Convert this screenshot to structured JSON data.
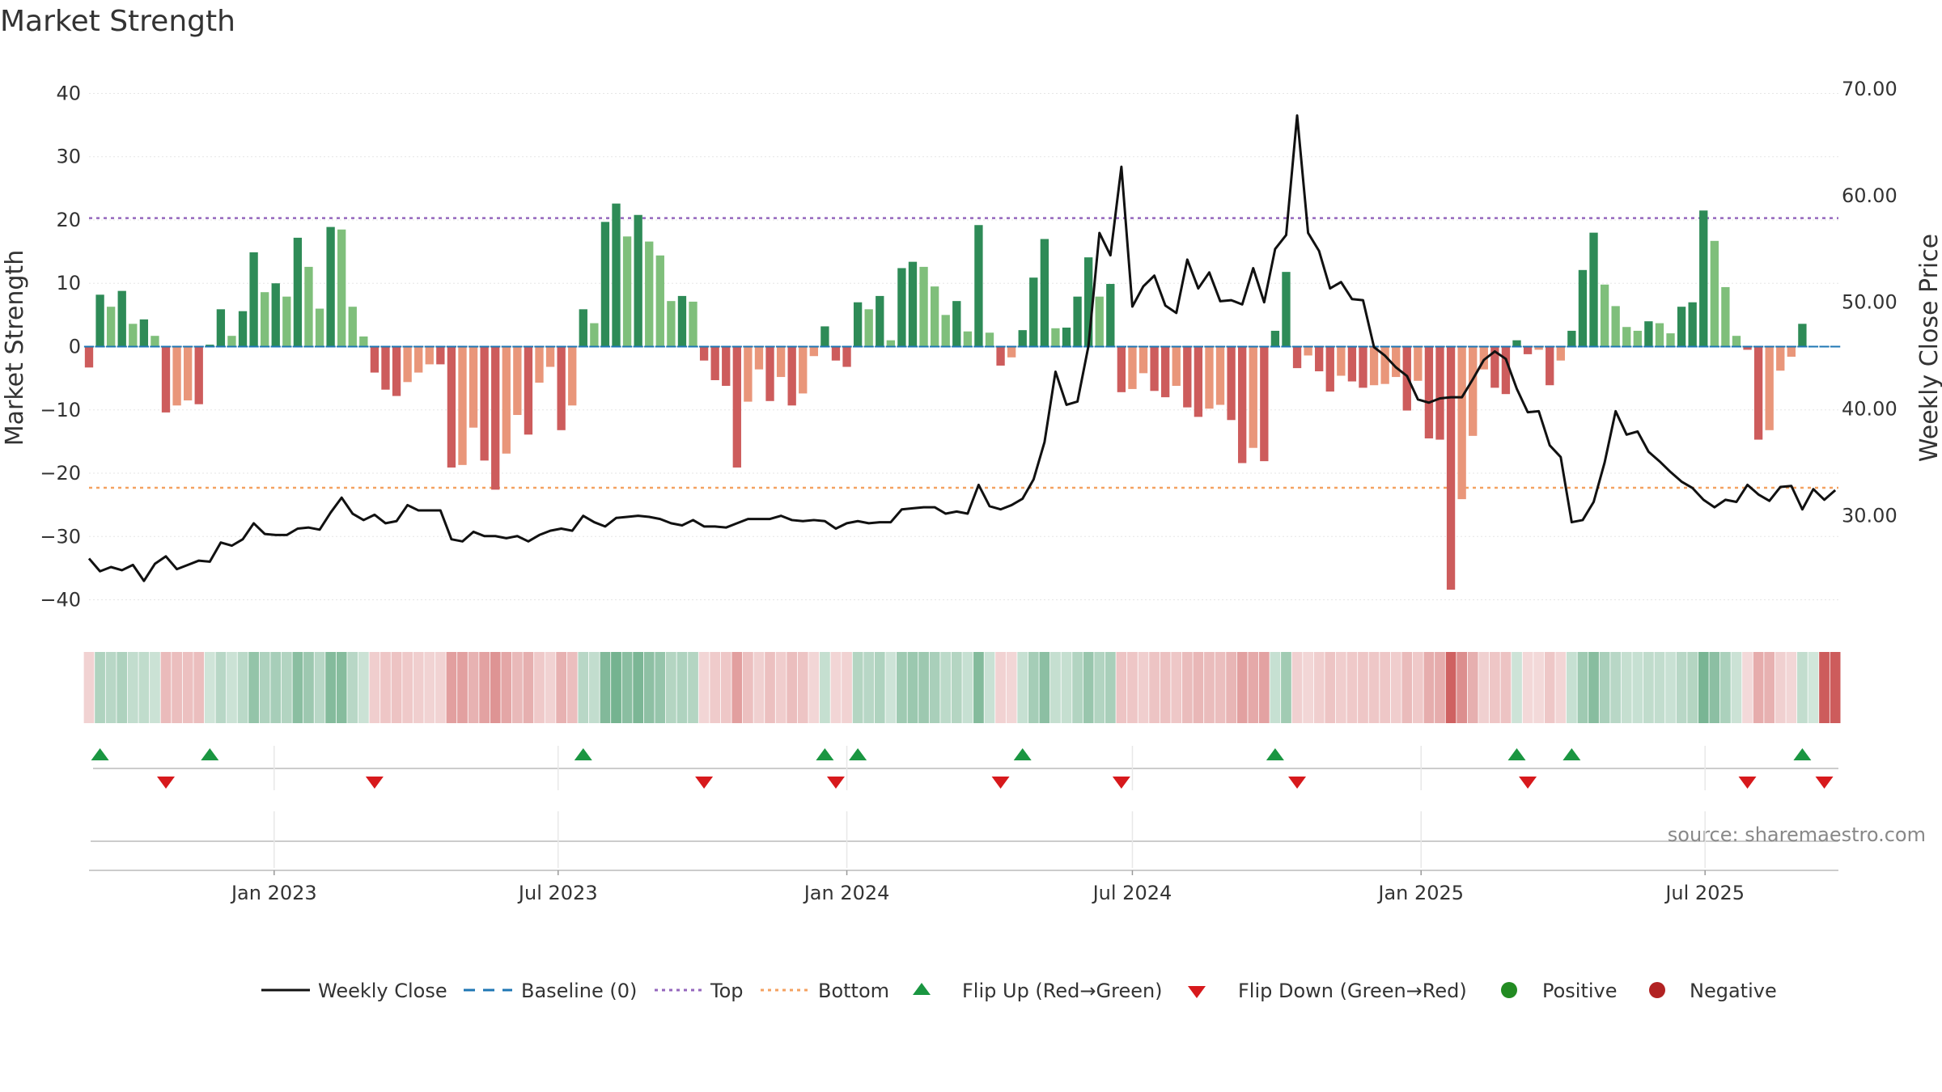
{
  "chart_data": {
    "type": "bar",
    "title": "Market Strength",
    "ylabel": "Market Strength",
    "y2label": "Weekly Close Price",
    "ylim": [
      -43,
      43
    ],
    "y2lim": [
      20.35,
      71.35
    ],
    "yticks": [
      40,
      30,
      20,
      10,
      0,
      -10,
      -20,
      -30,
      -40
    ],
    "y2ticks": [
      "70.00",
      "60.00",
      "50.00",
      "40.00",
      "30.00"
    ],
    "top_level": 20.3,
    "bottom_level": -22.3,
    "x_start": "2022-09-05",
    "x_end": "2025-09-24",
    "month_ticks": [
      {
        "date": "2023-01-01",
        "label": "Jan 2023"
      },
      {
        "date": "2023-07-01",
        "label": "Jul 2023"
      },
      {
        "date": "2024-01-01",
        "label": "Jan 2024"
      },
      {
        "date": "2024-07-01",
        "label": "Jul 2024"
      },
      {
        "date": "2025-01-01",
        "label": "Jan 2025"
      },
      {
        "date": "2025-07-01",
        "label": "Jul 2025"
      }
    ],
    "weeks": [
      "2022-09-05",
      "2022-09-12",
      "2022-09-19",
      "2022-09-26",
      "2022-10-03",
      "2022-10-10",
      "2022-10-17",
      "2022-10-24",
      "2022-10-31",
      "2022-11-07",
      "2022-11-14",
      "2022-11-21",
      "2022-11-28",
      "2022-12-05",
      "2022-12-12",
      "2022-12-19",
      "2022-12-26",
      "2023-01-02",
      "2023-01-09",
      "2023-01-16",
      "2023-01-23",
      "2023-01-30",
      "2023-02-06",
      "2023-02-13",
      "2023-02-20",
      "2023-02-27",
      "2023-03-06",
      "2023-03-13",
      "2023-03-20",
      "2023-03-27",
      "2023-04-03",
      "2023-04-10",
      "2023-04-17",
      "2023-04-24",
      "2023-05-01",
      "2023-05-08",
      "2023-05-15",
      "2023-05-22",
      "2023-05-29",
      "2023-06-05",
      "2023-06-12",
      "2023-06-19",
      "2023-06-26",
      "2023-07-03",
      "2023-07-10",
      "2023-07-17",
      "2023-07-24",
      "2023-07-31",
      "2023-08-07",
      "2023-08-14",
      "2023-08-21",
      "2023-08-28",
      "2023-09-04",
      "2023-09-11",
      "2023-09-18",
      "2023-09-25",
      "2023-10-02",
      "2023-10-09",
      "2023-10-16",
      "2023-10-23",
      "2023-10-30",
      "2023-11-06",
      "2023-11-13",
      "2023-11-20",
      "2023-11-27",
      "2023-12-04",
      "2023-12-11",
      "2023-12-18",
      "2023-12-25",
      "2024-01-01",
      "2024-01-08",
      "2024-01-15",
      "2024-01-22",
      "2024-01-29",
      "2024-02-05",
      "2024-02-12",
      "2024-02-19",
      "2024-02-26",
      "2024-03-04",
      "2024-03-11",
      "2024-03-18",
      "2024-03-25",
      "2024-04-01",
      "2024-04-08",
      "2024-04-15",
      "2024-04-22",
      "2024-04-29",
      "2024-05-06",
      "2024-05-13",
      "2024-05-20",
      "2024-05-27",
      "2024-06-03",
      "2024-06-10",
      "2024-06-17",
      "2024-06-24",
      "2024-07-01",
      "2024-07-08",
      "2024-07-15",
      "2024-07-22",
      "2024-07-29",
      "2024-08-05",
      "2024-08-12",
      "2024-08-19",
      "2024-08-26",
      "2024-09-02",
      "2024-09-09",
      "2024-09-16",
      "2024-09-23",
      "2024-09-30",
      "2024-10-07",
      "2024-10-14",
      "2024-10-21",
      "2024-10-28",
      "2024-11-04",
      "2024-11-11",
      "2024-11-18",
      "2024-11-25",
      "2024-12-02",
      "2024-12-09",
      "2024-12-16",
      "2024-12-23",
      "2024-12-30",
      "2025-01-06",
      "2025-01-13",
      "2025-01-20",
      "2025-01-27",
      "2025-02-03",
      "2025-02-10",
      "2025-02-17",
      "2025-02-24",
      "2025-03-03",
      "2025-03-10",
      "2025-03-17",
      "2025-03-24",
      "2025-03-31",
      "2025-04-07",
      "2025-04-14",
      "2025-04-21",
      "2025-04-28",
      "2025-05-05",
      "2025-05-12",
      "2025-05-19",
      "2025-05-26",
      "2025-06-02",
      "2025-06-09",
      "2025-06-16",
      "2025-06-23",
      "2025-06-30",
      "2025-07-07",
      "2025-07-14",
      "2025-07-21",
      "2025-07-28",
      "2025-08-04",
      "2025-08-11",
      "2025-08-18",
      "2025-08-25",
      "2025-09-01",
      "2025-09-08",
      "2025-09-15",
      "2025-09-22"
    ],
    "strength": [
      -3.3,
      8.2,
      6.3,
      8.8,
      3.6,
      4.3,
      1.7,
      -10.4,
      -9.3,
      -8.5,
      -9.1,
      0.3,
      5.9,
      1.7,
      5.6,
      14.9,
      8.6,
      10.0,
      7.9,
      17.2,
      12.6,
      6.0,
      18.9,
      18.5,
      6.3,
      1.6,
      -4.1,
      -6.8,
      -7.8,
      -5.6,
      -4.1,
      -2.8,
      -2.8,
      -19.1,
      -18.7,
      -12.8,
      -18.0,
      -22.6,
      -16.9,
      -10.8,
      -13.9,
      -5.7,
      -3.2,
      -13.2,
      -9.3,
      5.9,
      3.7,
      19.7,
      22.6,
      17.4,
      20.8,
      16.6,
      14.4,
      7.2,
      8.0,
      7.1,
      -2.2,
      -5.3,
      -6.2,
      -19.1,
      -8.7,
      -3.6,
      -8.6,
      -4.8,
      -9.3,
      -7.4,
      -1.5,
      3.2,
      -2.2,
      -3.2,
      7.0,
      5.9,
      8.0,
      1.0,
      12.4,
      13.4,
      12.6,
      9.5,
      5.0,
      7.2,
      2.4,
      19.2,
      2.2,
      -3.0,
      -1.7,
      2.6,
      10.9,
      17.0,
      2.9,
      3.0,
      7.9,
      14.1,
      7.9,
      9.9,
      -7.2,
      -6.7,
      -4.2,
      -7.0,
      -8.0,
      -6.2,
      -9.6,
      -11.1,
      -9.8,
      -9.2,
      -11.6,
      -18.4,
      -16.0,
      -18.1,
      2.5,
      11.8,
      -3.4,
      -1.4,
      -3.9,
      -7.1,
      -4.6,
      -5.5,
      -6.5,
      -6.1,
      -5.9,
      -4.8,
      -10.1,
      -5.4,
      -14.5,
      -14.7,
      -38.4,
      -24.1,
      -14.1,
      -3.6,
      -6.5,
      -7.5,
      1.0,
      -1.2,
      -0.5,
      -6.1,
      -2.2,
      2.5,
      12.1,
      18.0,
      9.8,
      6.4,
      3.1,
      2.5,
      4.0,
      3.7,
      2.1,
      6.3,
      7.0,
      21.5,
      16.7,
      9.4,
      1.7,
      -0.5,
      -14.7,
      -13.2,
      -3.8,
      -1.6,
      3.6,
      0.0
    ],
    "weekly_close": [
      26.0,
      24.8,
      25.2,
      24.9,
      25.4,
      23.9,
      25.5,
      26.2,
      25.0,
      25.4,
      25.8,
      25.7,
      27.5,
      27.2,
      27.8,
      29.3,
      28.3,
      28.2,
      28.2,
      28.8,
      28.9,
      28.7,
      30.3,
      31.7,
      30.2,
      29.6,
      30.1,
      29.3,
      29.5,
      31.0,
      30.5,
      30.5,
      30.5,
      27.8,
      27.6,
      28.5,
      28.1,
      28.1,
      27.9,
      28.1,
      27.6,
      28.2,
      28.6,
      28.8,
      28.6,
      30.0,
      29.4,
      29.0,
      29.8,
      29.9,
      30.0,
      29.9,
      29.7,
      29.3,
      29.1,
      29.6,
      29.0,
      29.0,
      28.9,
      29.3,
      29.7,
      29.7,
      29.7,
      30.0,
      29.6,
      29.5,
      29.6,
      29.5,
      28.8,
      29.3,
      29.5,
      29.3,
      29.4,
      29.4,
      30.6,
      30.7,
      30.8,
      30.8,
      30.2,
      30.4,
      30.2,
      32.9,
      30.9,
      30.6,
      31.0,
      31.6,
      33.4,
      36.9,
      43.5,
      40.4,
      40.7,
      45.9,
      56.5,
      54.4,
      62.7,
      49.6,
      51.5,
      52.5,
      49.7,
      49.0,
      54.0,
      51.3,
      52.8,
      50.1,
      50.2,
      49.8,
      53.2,
      50.0,
      55.0,
      56.3,
      67.5,
      56.5,
      54.8,
      51.3,
      51.9,
      50.3,
      50.2,
      45.8,
      45.0,
      43.9,
      43.1,
      40.9,
      40.6,
      41.0,
      41.1,
      41.1,
      42.8,
      44.6,
      45.4,
      44.7,
      41.9,
      39.7,
      39.8,
      36.6,
      35.5,
      29.4,
      29.6,
      31.3,
      35.0,
      39.8,
      37.6,
      37.9,
      36.0,
      35.1,
      34.1,
      33.2,
      32.6,
      31.5,
      30.8,
      31.5,
      31.3,
      32.9,
      32.0,
      31.4,
      32.7,
      32.8,
      30.6,
      32.5,
      31.5,
      32.4,
      30.3
    ]
  },
  "legend": {
    "weekly_close": "Weekly Close",
    "baseline": "Baseline (0)",
    "top": "Top",
    "bottom": "Bottom",
    "flip_up": "Flip Up (Red→Green)",
    "flip_down": "Flip Down (Green→Red)",
    "positive": "Positive",
    "negative": "Negative"
  },
  "source": "source: sharemaestro.com",
  "colors": {
    "strong_green": "#2e8b57",
    "light_green": "#7fbf7b",
    "strong_red": "#cd5c5c",
    "light_red": "#e9967a",
    "line": "#111111",
    "baseline": "#1f77b4",
    "top": "#9467bd",
    "bottom": "#f4a261",
    "flip_up": "#1a9641",
    "flip_down": "#d7191c",
    "positive_dot": "#228b22",
    "negative_dot": "#b22222"
  }
}
